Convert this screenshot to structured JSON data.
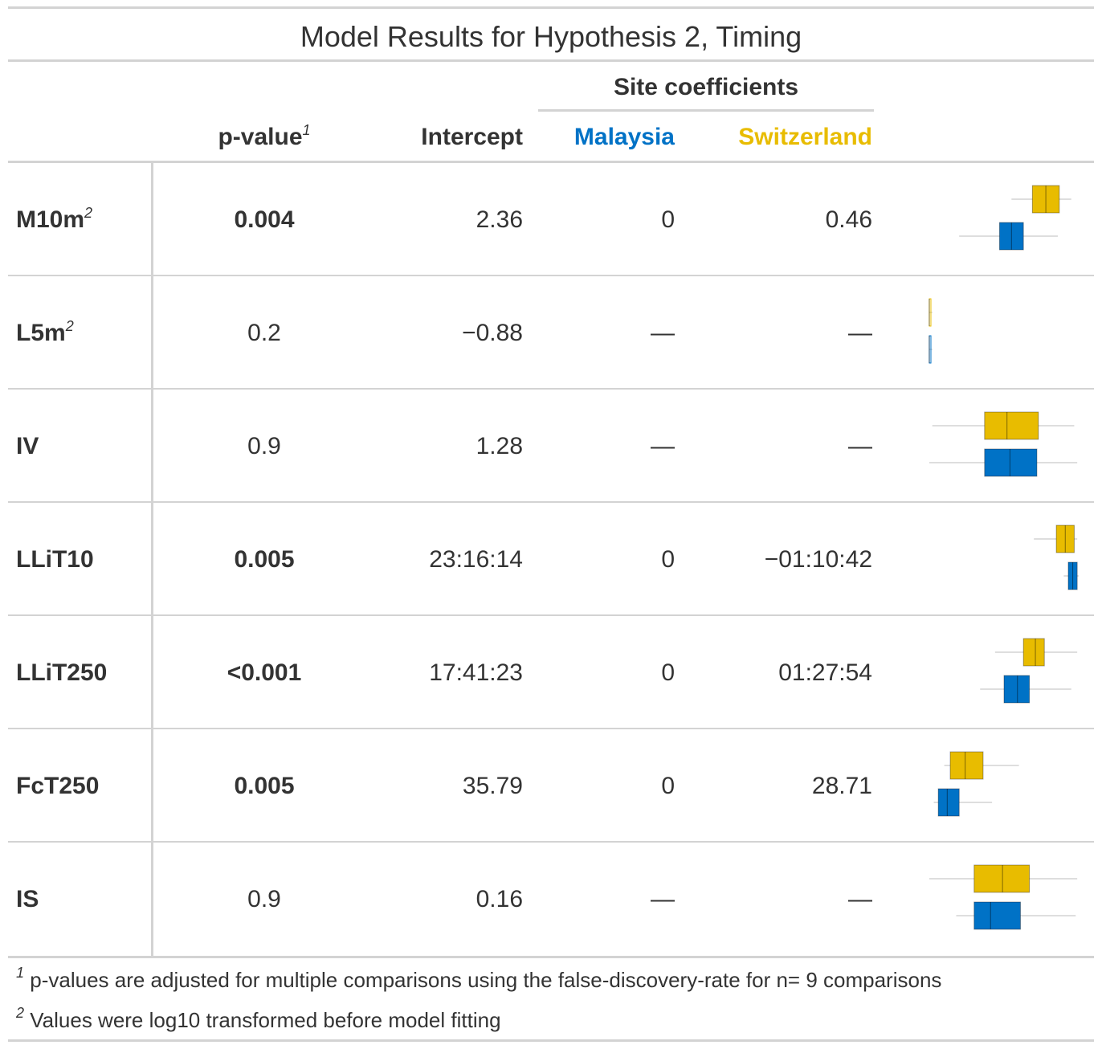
{
  "title": "Model Results for Hypothesis 2, Timing",
  "spanner": "Site coefficients",
  "columns": {
    "pvalue": "p-value",
    "pvalue_mark": "1",
    "intercept": "Intercept",
    "malaysia": "Malaysia",
    "switzerland": "Switzerland"
  },
  "colors": {
    "malaysia": "#0072C6",
    "switzerland": "#E8BC00",
    "rule": "#d3d3d3",
    "text": "#333333"
  },
  "rows": [
    {
      "label": "M10m",
      "mark": "2",
      "p": "0.004",
      "p_bold": true,
      "intercept": "2.36",
      "malaysia": "0",
      "switzerland": "0.46",
      "box": {
        "sw": [
          0.55,
          0.69,
          0.78,
          0.87,
          0.95
        ],
        "my": [
          0.2,
          0.47,
          0.55,
          0.63,
          0.86
        ]
      }
    },
    {
      "label": "L5m",
      "mark": "2",
      "p": "0.2",
      "p_bold": false,
      "intercept": "−0.88",
      "malaysia": "—",
      "switzerland": "—",
      "box": {
        "sw": [
          0.0,
          0.0,
          0.0,
          0.0,
          0.02
        ],
        "my": [
          0.0,
          0.0,
          0.0,
          0.0,
          0.02
        ]
      }
    },
    {
      "label": "IV",
      "mark": "",
      "p": "0.9",
      "p_bold": false,
      "intercept": "1.28",
      "malaysia": "—",
      "switzerland": "—",
      "box": {
        "sw": [
          0.02,
          0.37,
          0.52,
          0.73,
          0.97
        ],
        "my": [
          0.0,
          0.37,
          0.54,
          0.72,
          0.99
        ]
      }
    },
    {
      "label": "LLiT10",
      "mark": "",
      "p": "0.005",
      "p_bold": true,
      "intercept": "23:16:14",
      "malaysia": "0",
      "switzerland": "−01:10:42",
      "box": {
        "sw": [
          0.7,
          0.85,
          0.91,
          0.97,
          0.99
        ],
        "my": [
          0.9,
          0.93,
          0.96,
          0.99,
          1.0
        ]
      }
    },
    {
      "label": "LLiT250",
      "mark": "",
      "p": "<0.001",
      "p_bold": true,
      "intercept": "17:41:23",
      "malaysia": "0",
      "switzerland": "01:27:54",
      "box": {
        "sw": [
          0.44,
          0.63,
          0.71,
          0.77,
          0.99
        ],
        "my": [
          0.34,
          0.5,
          0.59,
          0.67,
          0.95
        ]
      }
    },
    {
      "label": "FcT250",
      "mark": "",
      "p": "0.005",
      "p_bold": true,
      "intercept": "35.79",
      "malaysia": "0",
      "switzerland": "28.71",
      "box": {
        "sw": [
          0.1,
          0.14,
          0.24,
          0.36,
          0.6
        ],
        "my": [
          0.03,
          0.06,
          0.12,
          0.2,
          0.42
        ]
      }
    },
    {
      "label": "IS",
      "mark": "",
      "p": "0.9",
      "p_bold": false,
      "intercept": "0.16",
      "malaysia": "—",
      "switzerland": "—",
      "box": {
        "sw": [
          0.0,
          0.3,
          0.49,
          0.67,
          0.99
        ],
        "my": [
          0.18,
          0.3,
          0.41,
          0.61,
          0.98
        ]
      }
    }
  ],
  "footnotes": [
    {
      "mark": "1",
      "text": "p-values are adjusted for multiple comparisons using the false-discovery-rate for n= 9 comparisons"
    },
    {
      "mark": "2",
      "text": "Values were log10 transformed before model fitting"
    }
  ]
}
